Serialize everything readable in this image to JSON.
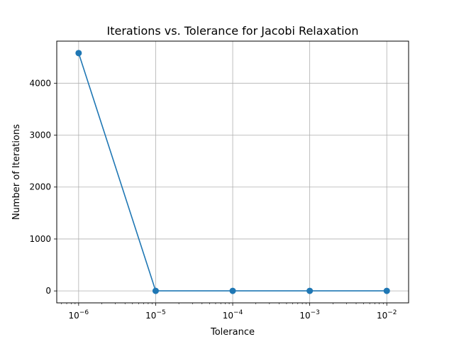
{
  "chart_data": {
    "type": "line",
    "title": "Iterations vs. Tolerance for Jacobi Relaxation",
    "xlabel": "Tolerance",
    "ylabel": "Number of Iterations",
    "xscale": "log",
    "grid": true,
    "x": [
      1e-06,
      1e-05,
      0.0001,
      0.001,
      0.01
    ],
    "series": [
      {
        "values": [
          4580,
          1,
          1,
          1,
          1
        ],
        "color": "#1f77b4",
        "marker": "circle"
      }
    ],
    "xticks": [
      {
        "value": 1e-06,
        "base": "10",
        "exp": "−6"
      },
      {
        "value": 1e-05,
        "base": "10",
        "exp": "−5"
      },
      {
        "value": 0.0001,
        "base": "10",
        "exp": "−4"
      },
      {
        "value": 0.001,
        "base": "10",
        "exp": "−3"
      },
      {
        "value": 0.01,
        "base": "10",
        "exp": "−2"
      }
    ],
    "yticks": [
      {
        "value": 0,
        "label": "0"
      },
      {
        "value": 1000,
        "label": "1000"
      },
      {
        "value": 2000,
        "label": "2000"
      },
      {
        "value": 3000,
        "label": "3000"
      },
      {
        "value": 4000,
        "label": "4000"
      }
    ],
    "xlim": [
      5.2e-07,
      0.0192
    ],
    "ylim": [
      -230,
      4810
    ]
  }
}
